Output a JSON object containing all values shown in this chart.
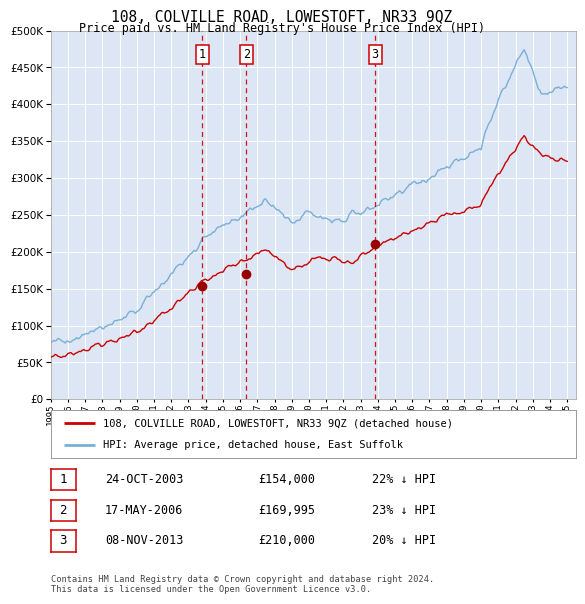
{
  "title": "108, COLVILLE ROAD, LOWESTOFT, NR33 9QZ",
  "subtitle": "Price paid vs. HM Land Registry's House Price Index (HPI)",
  "plot_bg_color": "#dce6f5",
  "hpi_color": "#7bafd4",
  "price_color": "#cc0000",
  "marker_color": "#990000",
  "vline_color": "#cc0000",
  "transactions": [
    {
      "label": "1",
      "date_num": 2003.81,
      "price": 154000
    },
    {
      "label": "2",
      "date_num": 2006.37,
      "price": 169995
    },
    {
      "label": "3",
      "date_num": 2013.85,
      "price": 210000
    }
  ],
  "legend_entries": [
    "108, COLVILLE ROAD, LOWESTOFT, NR33 9QZ (detached house)",
    "HPI: Average price, detached house, East Suffolk"
  ],
  "table_rows": [
    [
      "1",
      "24-OCT-2003",
      "£154,000",
      "22% ↓ HPI"
    ],
    [
      "2",
      "17-MAY-2006",
      "£169,995",
      "23% ↓ HPI"
    ],
    [
      "3",
      "08-NOV-2013",
      "£210,000",
      "20% ↓ HPI"
    ]
  ],
  "footer": "Contains HM Land Registry data © Crown copyright and database right 2024.\nThis data is licensed under the Open Government Licence v3.0.",
  "ylim": [
    0,
    500000
  ],
  "yticks": [
    0,
    50000,
    100000,
    150000,
    200000,
    250000,
    300000,
    350000,
    400000,
    450000,
    500000
  ],
  "xlim_start": 1995.0,
  "xlim_end": 2025.5,
  "xtick_years": [
    1995,
    1996,
    1997,
    1998,
    1999,
    2000,
    2001,
    2002,
    2003,
    2004,
    2005,
    2006,
    2007,
    2008,
    2009,
    2010,
    2011,
    2012,
    2013,
    2014,
    2015,
    2016,
    2017,
    2018,
    2019,
    2020,
    2021,
    2022,
    2023,
    2024,
    2025
  ]
}
